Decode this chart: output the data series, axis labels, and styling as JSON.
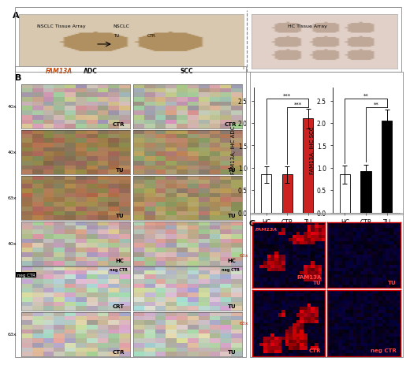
{
  "adc": {
    "categories": [
      "HC",
      "CTR",
      "TU"
    ],
    "values": [
      0.85,
      0.85,
      2.1
    ],
    "errors": [
      0.18,
      0.18,
      0.22
    ],
    "colors": [
      "white",
      "#cc2222",
      "#cc2222"
    ],
    "bar_edge_colors": [
      "black",
      "black",
      "black"
    ],
    "ylabel": "FAM13A, IHC ADC",
    "ylim": [
      0,
      2.8
    ],
    "yticks": [
      0.0,
      0.5,
      1.0,
      1.5,
      2.0,
      2.5
    ],
    "significance": [
      {
        "bars": [
          0,
          2
        ],
        "label": "***",
        "y": 2.55
      },
      {
        "bars": [
          1,
          2
        ],
        "label": "***",
        "y": 2.35
      }
    ]
  },
  "scc": {
    "categories": [
      "HC",
      "CTR",
      "TU"
    ],
    "values": [
      0.85,
      0.92,
      2.05
    ],
    "errors": [
      0.2,
      0.15,
      0.25
    ],
    "colors": [
      "white",
      "black",
      "black"
    ],
    "bar_edge_colors": [
      "black",
      "black",
      "black"
    ],
    "ylabel": "FAM13A, IHC SCC",
    "ylim": [
      0,
      2.8
    ],
    "yticks": [
      0.0,
      0.5,
      1.0,
      1.5,
      2.0,
      2.5
    ],
    "significance": [
      {
        "bars": [
          0,
          2
        ],
        "label": "**",
        "y": 2.55
      },
      {
        "bars": [
          1,
          2
        ],
        "label": "**",
        "y": 2.35
      }
    ]
  },
  "panel_A_bg": "#f5f5f5",
  "panel_B_bg": "#f5f5f5",
  "panel_C_bg": "#f5f5f5",
  "figure_bg": "white",
  "border_color": "#888888",
  "font_size": 5.5,
  "bar_width": 0.5,
  "label_A": "A",
  "label_B": "B",
  "label_C": "C",
  "tissue_array_color": "#e8ddd0",
  "ihc_brown_color": "#c8a878",
  "ihc_light_color": "#e8d8c0",
  "confocal_bg": "#08001a",
  "confocal_red": "#cc2200",
  "row_labels_40x": "40x",
  "row_labels_63x": "63x",
  "fam13a_label_color": "#cc4400"
}
